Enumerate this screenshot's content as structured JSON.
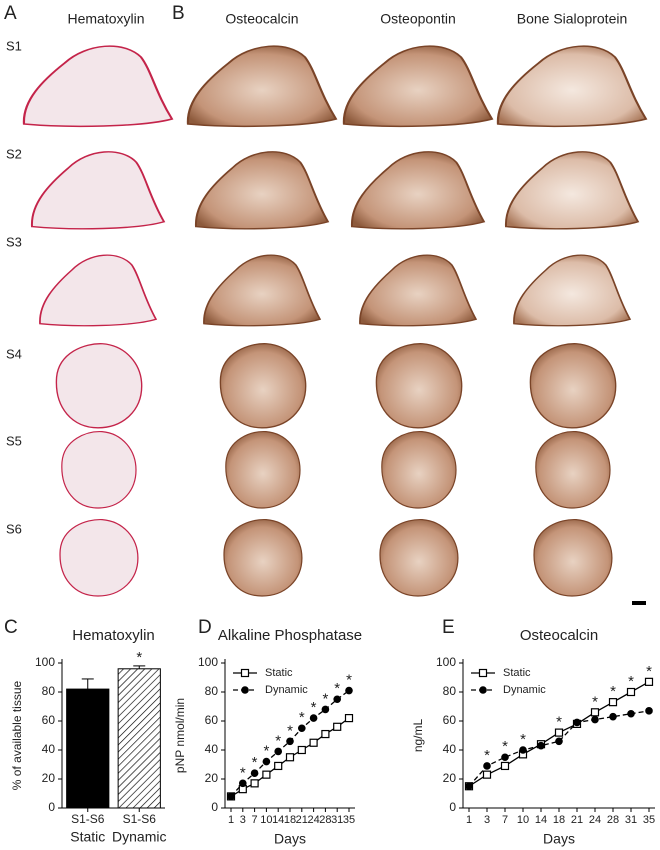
{
  "figure": {
    "panels": [
      "A",
      "B"
    ],
    "columns": [
      "Hematoxylin",
      "Osteocalcin",
      "Osteopontin",
      "Bone Sialoprotein"
    ],
    "rows": [
      "S1",
      "S2",
      "S3",
      "S4",
      "S5",
      "S6"
    ]
  },
  "chart_data": [
    {
      "type": "bar",
      "panel": "C",
      "title": "Hematoxylin",
      "y_label": "% of available tissue",
      "categories": [
        "S1-S6",
        "S1-S6"
      ],
      "groups": [
        "Static",
        "Dynamic"
      ],
      "values": [
        82,
        96
      ],
      "errors": [
        7,
        2
      ],
      "hatch": [
        false,
        true
      ],
      "color": "#000000",
      "significance_labels": [
        null,
        "*"
      ],
      "ylim": [
        0,
        100
      ],
      "yticks": [
        0,
        20,
        40,
        60,
        80,
        100
      ]
    },
    {
      "type": "line",
      "panel": "D",
      "title": "Alkaline Phosphatase",
      "y_label": "pNP nmol/min",
      "x_label": "Days",
      "categories": [
        "1",
        "3",
        "7",
        "10",
        "14",
        "18",
        "21",
        "24",
        "28",
        "31",
        "35"
      ],
      "series": [
        {
          "name": "Static",
          "color": "#000000",
          "marker": "square",
          "dashed": false,
          "values": [
            8,
            13,
            17,
            23,
            29,
            35,
            40,
            45,
            51,
            56,
            62
          ]
        },
        {
          "name": "Dynamic",
          "color": "#000000",
          "marker": "circle",
          "dashed": true,
          "values": [
            8,
            17,
            24,
            32,
            39,
            46,
            55,
            62,
            68,
            75,
            81
          ]
        }
      ],
      "significance_labels": [
        null,
        "*",
        "*",
        "*",
        "*",
        "*",
        "*",
        "*",
        "*",
        "*",
        "*"
      ],
      "legend": "upper left",
      "ylim": [
        0,
        100
      ],
      "yticks": [
        0,
        20,
        40,
        60,
        80,
        100
      ]
    },
    {
      "type": "line",
      "panel": "E",
      "title": "Osteocalcin",
      "y_label": "ng/mL",
      "x_label": "Days",
      "categories": [
        "1",
        "3",
        "7",
        "10",
        "14",
        "18",
        "21",
        "24",
        "28",
        "31",
        "35"
      ],
      "series": [
        {
          "name": "Static",
          "color": "#000000",
          "marker": "square",
          "dashed": false,
          "values": [
            15,
            23,
            29,
            37,
            44,
            52,
            58,
            66,
            73,
            80,
            87
          ]
        },
        {
          "name": "Dynamic",
          "color": "#000000",
          "marker": "circle",
          "dashed": true,
          "values": [
            15,
            29,
            35,
            40,
            43,
            46,
            59,
            61,
            63,
            65,
            67
          ]
        }
      ],
      "significance_labels": [
        null,
        "*",
        "*",
        "*",
        null,
        "*",
        null,
        "*",
        "*",
        "*",
        "*"
      ],
      "legend": "upper left",
      "ylim": [
        0,
        100
      ],
      "yticks": [
        0,
        20,
        40,
        60,
        80,
        100
      ]
    }
  ]
}
